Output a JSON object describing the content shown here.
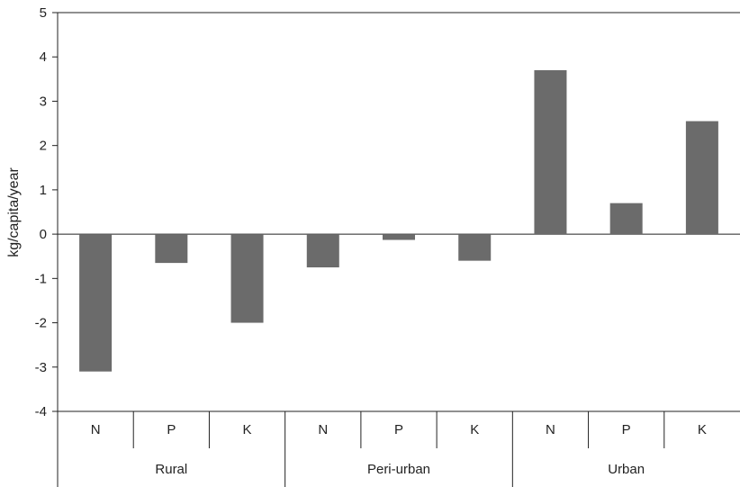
{
  "chart_data": {
    "type": "bar",
    "title": "",
    "ylabel": "kg/capita/year",
    "xlabel": "",
    "ylim": [
      -4,
      5
    ],
    "yticks": [
      5,
      4,
      3,
      2,
      1,
      0,
      -1,
      -2,
      -3,
      -4
    ],
    "groups": [
      {
        "label": "Rural",
        "categories": [
          "N",
          "P",
          "K"
        ],
        "values": [
          -3.1,
          -0.65,
          -2.0
        ]
      },
      {
        "label": "Peri-urban",
        "categories": [
          "N",
          "P",
          "K"
        ],
        "values": [
          -0.75,
          -0.13,
          -0.6
        ]
      },
      {
        "label": "Urban",
        "categories": [
          "N",
          "P",
          "K"
        ],
        "values": [
          3.7,
          0.7,
          2.55
        ]
      }
    ],
    "bar_color": "#6b6b6b",
    "grid": false,
    "legend": "none"
  }
}
